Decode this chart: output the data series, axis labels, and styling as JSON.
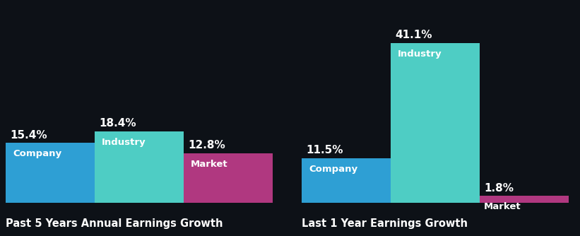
{
  "background_color": "#0d1117",
  "bar_groups": [
    {
      "title": "Past 5 Years Annual Earnings Growth",
      "bars": [
        {
          "label": "Company",
          "value": 15.4,
          "color": "#2e9fd4"
        },
        {
          "label": "Industry",
          "value": 18.4,
          "color": "#4ecdc4"
        },
        {
          "label": "Market",
          "value": 12.8,
          "color": "#b03880"
        }
      ]
    },
    {
      "title": "Last 1 Year Earnings Growth",
      "bars": [
        {
          "label": "Company",
          "value": 11.5,
          "color": "#2e9fd4"
        },
        {
          "label": "Industry",
          "value": 41.1,
          "color": "#4ecdc4"
        },
        {
          "label": "Market",
          "value": 1.8,
          "color": "#b03880"
        }
      ]
    }
  ],
  "text_color": "#ffffff",
  "label_color": "#ffffff",
  "title_fontsize": 10.5,
  "value_fontsize": 11,
  "bar_label_fontsize": 9.5,
  "global_max": 41.1
}
